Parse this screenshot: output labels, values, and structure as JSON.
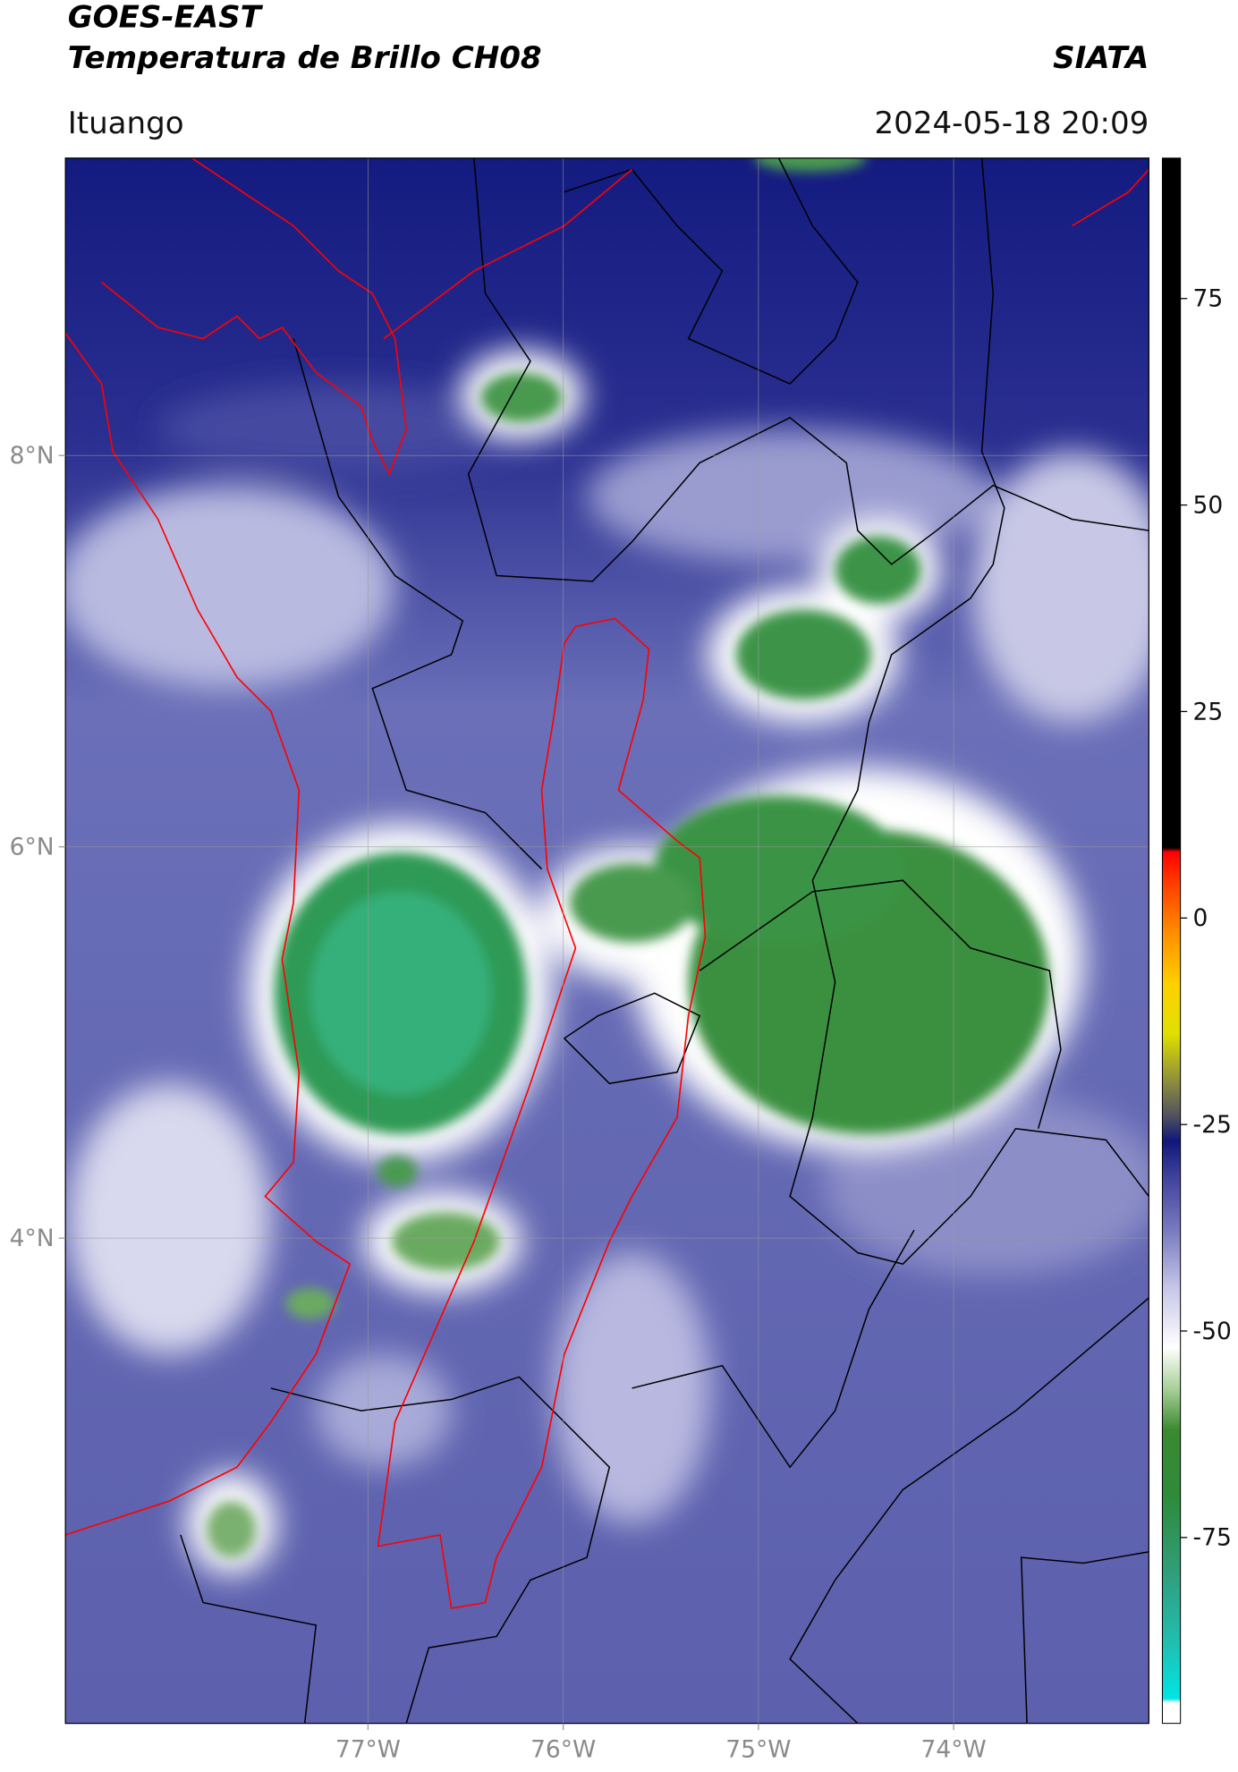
{
  "header": {
    "title": "GOES-EAST",
    "subtitle": "Temperatura de Brillo CH08",
    "source": "SIATA",
    "location": "Ituango",
    "datetime": "2024-05-18 20:09"
  },
  "map": {
    "xlim": [
      -78.55,
      -73.0
    ],
    "ylim": [
      1.52,
      9.52
    ],
    "xticks": [
      {
        "value": -77,
        "label": "77°W"
      },
      {
        "value": -76,
        "label": "76°W"
      },
      {
        "value": -75,
        "label": "75°W"
      },
      {
        "value": -74,
        "label": "74°W"
      }
    ],
    "yticks": [
      {
        "value": 4,
        "label": "4°N"
      },
      {
        "value": 6,
        "label": "6°N"
      },
      {
        "value": 8,
        "label": "8°N"
      }
    ],
    "grid": true
  },
  "colorbar": {
    "ylim": [
      -97.5,
      92
    ],
    "yticks": [
      -75,
      -50,
      -25,
      0,
      25,
      50,
      75
    ],
    "color_stops": [
      {
        "value": -97.5,
        "color": "#ffffff"
      },
      {
        "value": -95,
        "color": "#ffffff"
      },
      {
        "value": -94.5,
        "color": "#00e5e5"
      },
      {
        "value": -88,
        "color": "#20c0b0"
      },
      {
        "value": -80,
        "color": "#30a080"
      },
      {
        "value": -70,
        "color": "#2e8b3a"
      },
      {
        "value": -62,
        "color": "#3a8a30"
      },
      {
        "value": -57,
        "color": "#a8d098"
      },
      {
        "value": -52,
        "color": "#ffffff"
      },
      {
        "value": -45,
        "color": "#c8c8e8"
      },
      {
        "value": -38,
        "color": "#7a7cc0"
      },
      {
        "value": -31,
        "color": "#3c3f9a"
      },
      {
        "value": -27,
        "color": "#10177a"
      },
      {
        "value": -24,
        "color": "#505060"
      },
      {
        "value": -20,
        "color": "#8a8a40"
      },
      {
        "value": -14,
        "color": "#e0e000"
      },
      {
        "value": -8,
        "color": "#ffd000"
      },
      {
        "value": -2,
        "color": "#ff9000"
      },
      {
        "value": 4,
        "color": "#ff4000"
      },
      {
        "value": 8,
        "color": "#ff0000"
      },
      {
        "value": 8.5,
        "color": "#000000"
      },
      {
        "value": 92,
        "color": "#000000"
      }
    ]
  }
}
